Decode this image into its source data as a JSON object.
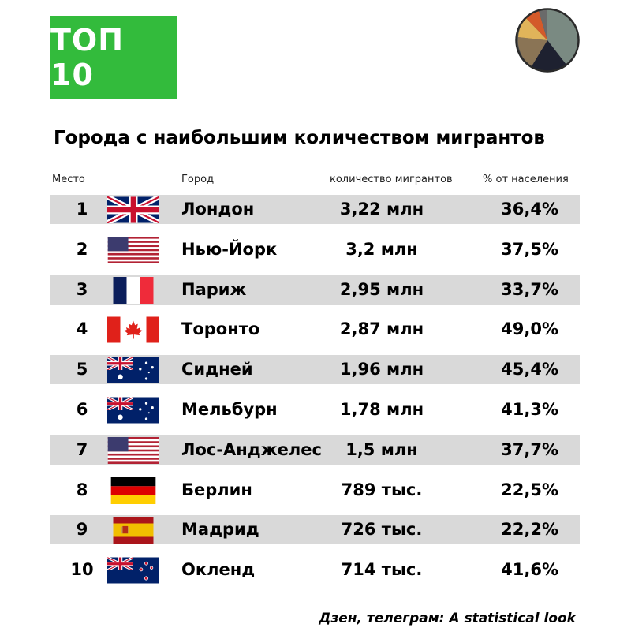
{
  "badge": {
    "label": "ТОП 10"
  },
  "title": "Города с наибольшим количеством мигрантов",
  "columns": {
    "rank": "Место",
    "city": "Город",
    "migrants": "количество мигрантов",
    "percent": "% от населения"
  },
  "rows": [
    {
      "rank": "1",
      "flag": "uk-flag-icon",
      "city": "Лондон",
      "migrants": "3,22 млн",
      "percent": "36,4%"
    },
    {
      "rank": "2",
      "flag": "usa-flag-icon",
      "city": "Нью-Йорк",
      "migrants": "3,2 млн",
      "percent": "37,5%"
    },
    {
      "rank": "3",
      "flag": "france-flag-icon",
      "city": "Париж",
      "migrants": "2,95 млн",
      "percent": "33,7%"
    },
    {
      "rank": "4",
      "flag": "canada-flag-icon",
      "city": "Торонто",
      "migrants": "2,87 млн",
      "percent": "49,0%"
    },
    {
      "rank": "5",
      "flag": "australia-flag-icon",
      "city": "Сидней",
      "migrants": "1,96 млн",
      "percent": "45,4%"
    },
    {
      "rank": "6",
      "flag": "australia-flag-icon",
      "city": "Мельбурн",
      "migrants": "1,78 млн",
      "percent": "41,3%"
    },
    {
      "rank": "7",
      "flag": "usa-flag-icon",
      "city": "Лос-Анджелес",
      "migrants": "1,5 млн",
      "percent": "37,7%"
    },
    {
      "rank": "8",
      "flag": "germany-flag-icon",
      "city": "Берлин",
      "migrants": "789 тыс.",
      "percent": "22,5%"
    },
    {
      "rank": "9",
      "flag": "spain-flag-icon",
      "city": "Мадрид",
      "migrants": "726 тыс.",
      "percent": "22,2%"
    },
    {
      "rank": "10",
      "flag": "new-zealand-flag-icon",
      "city": "Окленд",
      "migrants": "714 тыс.",
      "percent": "41,6%"
    }
  ],
  "footer": "Дзен, телеграм: A statistical look",
  "colors": {
    "badge": "#33bb3c",
    "row_shade": "#d9d9d9"
  }
}
